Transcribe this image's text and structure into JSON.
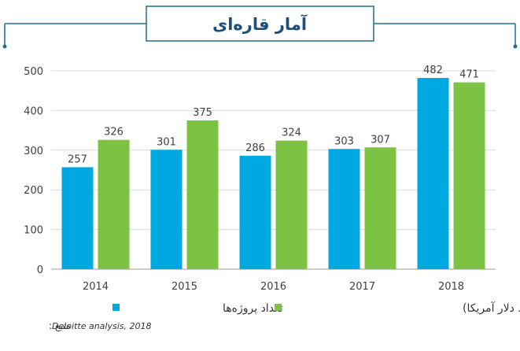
{
  "chart_data": {
    "type": "bar",
    "title": "آمار قاره‌ای",
    "categories": [
      "2014",
      "2015",
      "2016",
      "2017",
      "2018"
    ],
    "series": [
      {
        "name": "تعداد پروژه‌ها",
        "values": [
          257,
          301,
          286,
          303,
          482
        ],
        "color": "#00a8e1"
      },
      {
        "name": "ارزش (میلیارد دلار آمریکا)",
        "values": [
          326,
          375,
          324,
          307,
          471
        ],
        "color": "#7dc243"
      }
    ],
    "ylim": [
      0,
      500
    ],
    "yticks": [
      0,
      100,
      200,
      300,
      400,
      500
    ],
    "grid": true,
    "legend_position": "bottom",
    "source_label": "منبع :",
    "source_text": "Deloitte analysis, 2018",
    "colors": {
      "title_border": "#1f6e8c",
      "title_text": "#1f4e79",
      "grid": "#d9d9d9",
      "axis_text": "#404040",
      "value_label": "#404040"
    }
  }
}
